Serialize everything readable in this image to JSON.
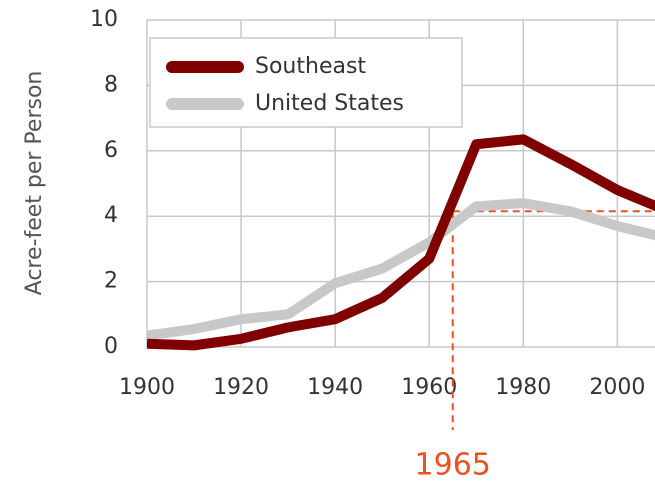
{
  "chart_data": {
    "type": "line",
    "ylabel": "Acre-feet per Person",
    "x": [
      1900,
      1910,
      1920,
      1930,
      1940,
      1950,
      1960,
      1970,
      1980,
      1990,
      2000,
      2010
    ],
    "series": [
      {
        "name": "Southeast",
        "color": "#800000",
        "values": [
          0.1,
          0.05,
          0.25,
          0.6,
          0.85,
          1.5,
          2.7,
          6.2,
          6.35,
          5.6,
          4.8,
          4.2
        ]
      },
      {
        "name": "United States",
        "color": "#c8c8c8",
        "values": [
          0.35,
          0.55,
          0.85,
          1.0,
          1.95,
          2.4,
          3.2,
          4.3,
          4.4,
          4.15,
          3.7,
          3.35
        ]
      }
    ],
    "xlim": [
      1900,
      2008
    ],
    "xticks": [
      1900,
      1920,
      1940,
      1960,
      1980,
      2000
    ],
    "ylim": [
      0,
      10
    ],
    "yticks": [
      0,
      2,
      4,
      6,
      8,
      10
    ],
    "grid": true,
    "legend": "upper left",
    "annotation": {
      "label": "1965",
      "x": 1965,
      "y": 4.15,
      "color": "#f04e23"
    }
  }
}
